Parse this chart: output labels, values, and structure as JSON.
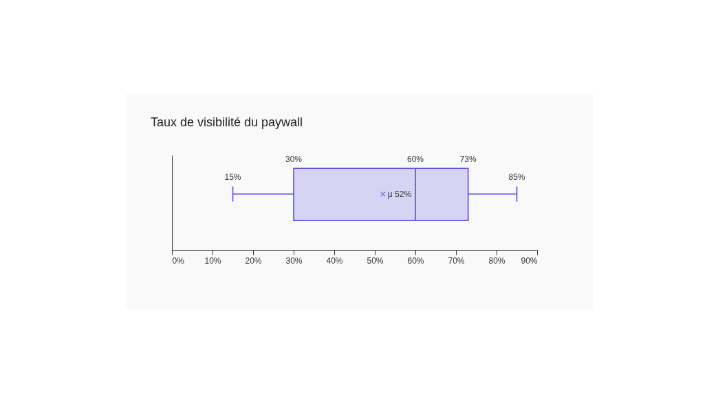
{
  "chart_data": {
    "type": "box",
    "orientation": "horizontal",
    "title": "Taux de visibilité du paywall",
    "categories": [
      null
    ],
    "boxes": [
      {
        "low": 15,
        "q1": 30,
        "median": 60,
        "q3": 73,
        "high": 85,
        "mean": 52
      }
    ],
    "color": "#5b4fe0",
    "marker": "cross",
    "grid": false,
    "xlim": [
      0,
      90
    ],
    "xticks": [
      {
        "value": 0,
        "label": "0%"
      },
      {
        "value": 10,
        "label": "10%"
      },
      {
        "value": 20,
        "label": "20%"
      },
      {
        "value": 30,
        "label": "30%"
      },
      {
        "value": 40,
        "label": "40%"
      },
      {
        "value": 50,
        "label": "50%"
      },
      {
        "value": 60,
        "label": "60%"
      },
      {
        "value": 70,
        "label": "70%"
      },
      {
        "value": 80,
        "label": "80%"
      },
      {
        "value": 90,
        "label": "90%"
      }
    ],
    "annotations": [
      "15%",
      "30%",
      "60%",
      "73%",
      "85%",
      "μ 52%"
    ]
  }
}
